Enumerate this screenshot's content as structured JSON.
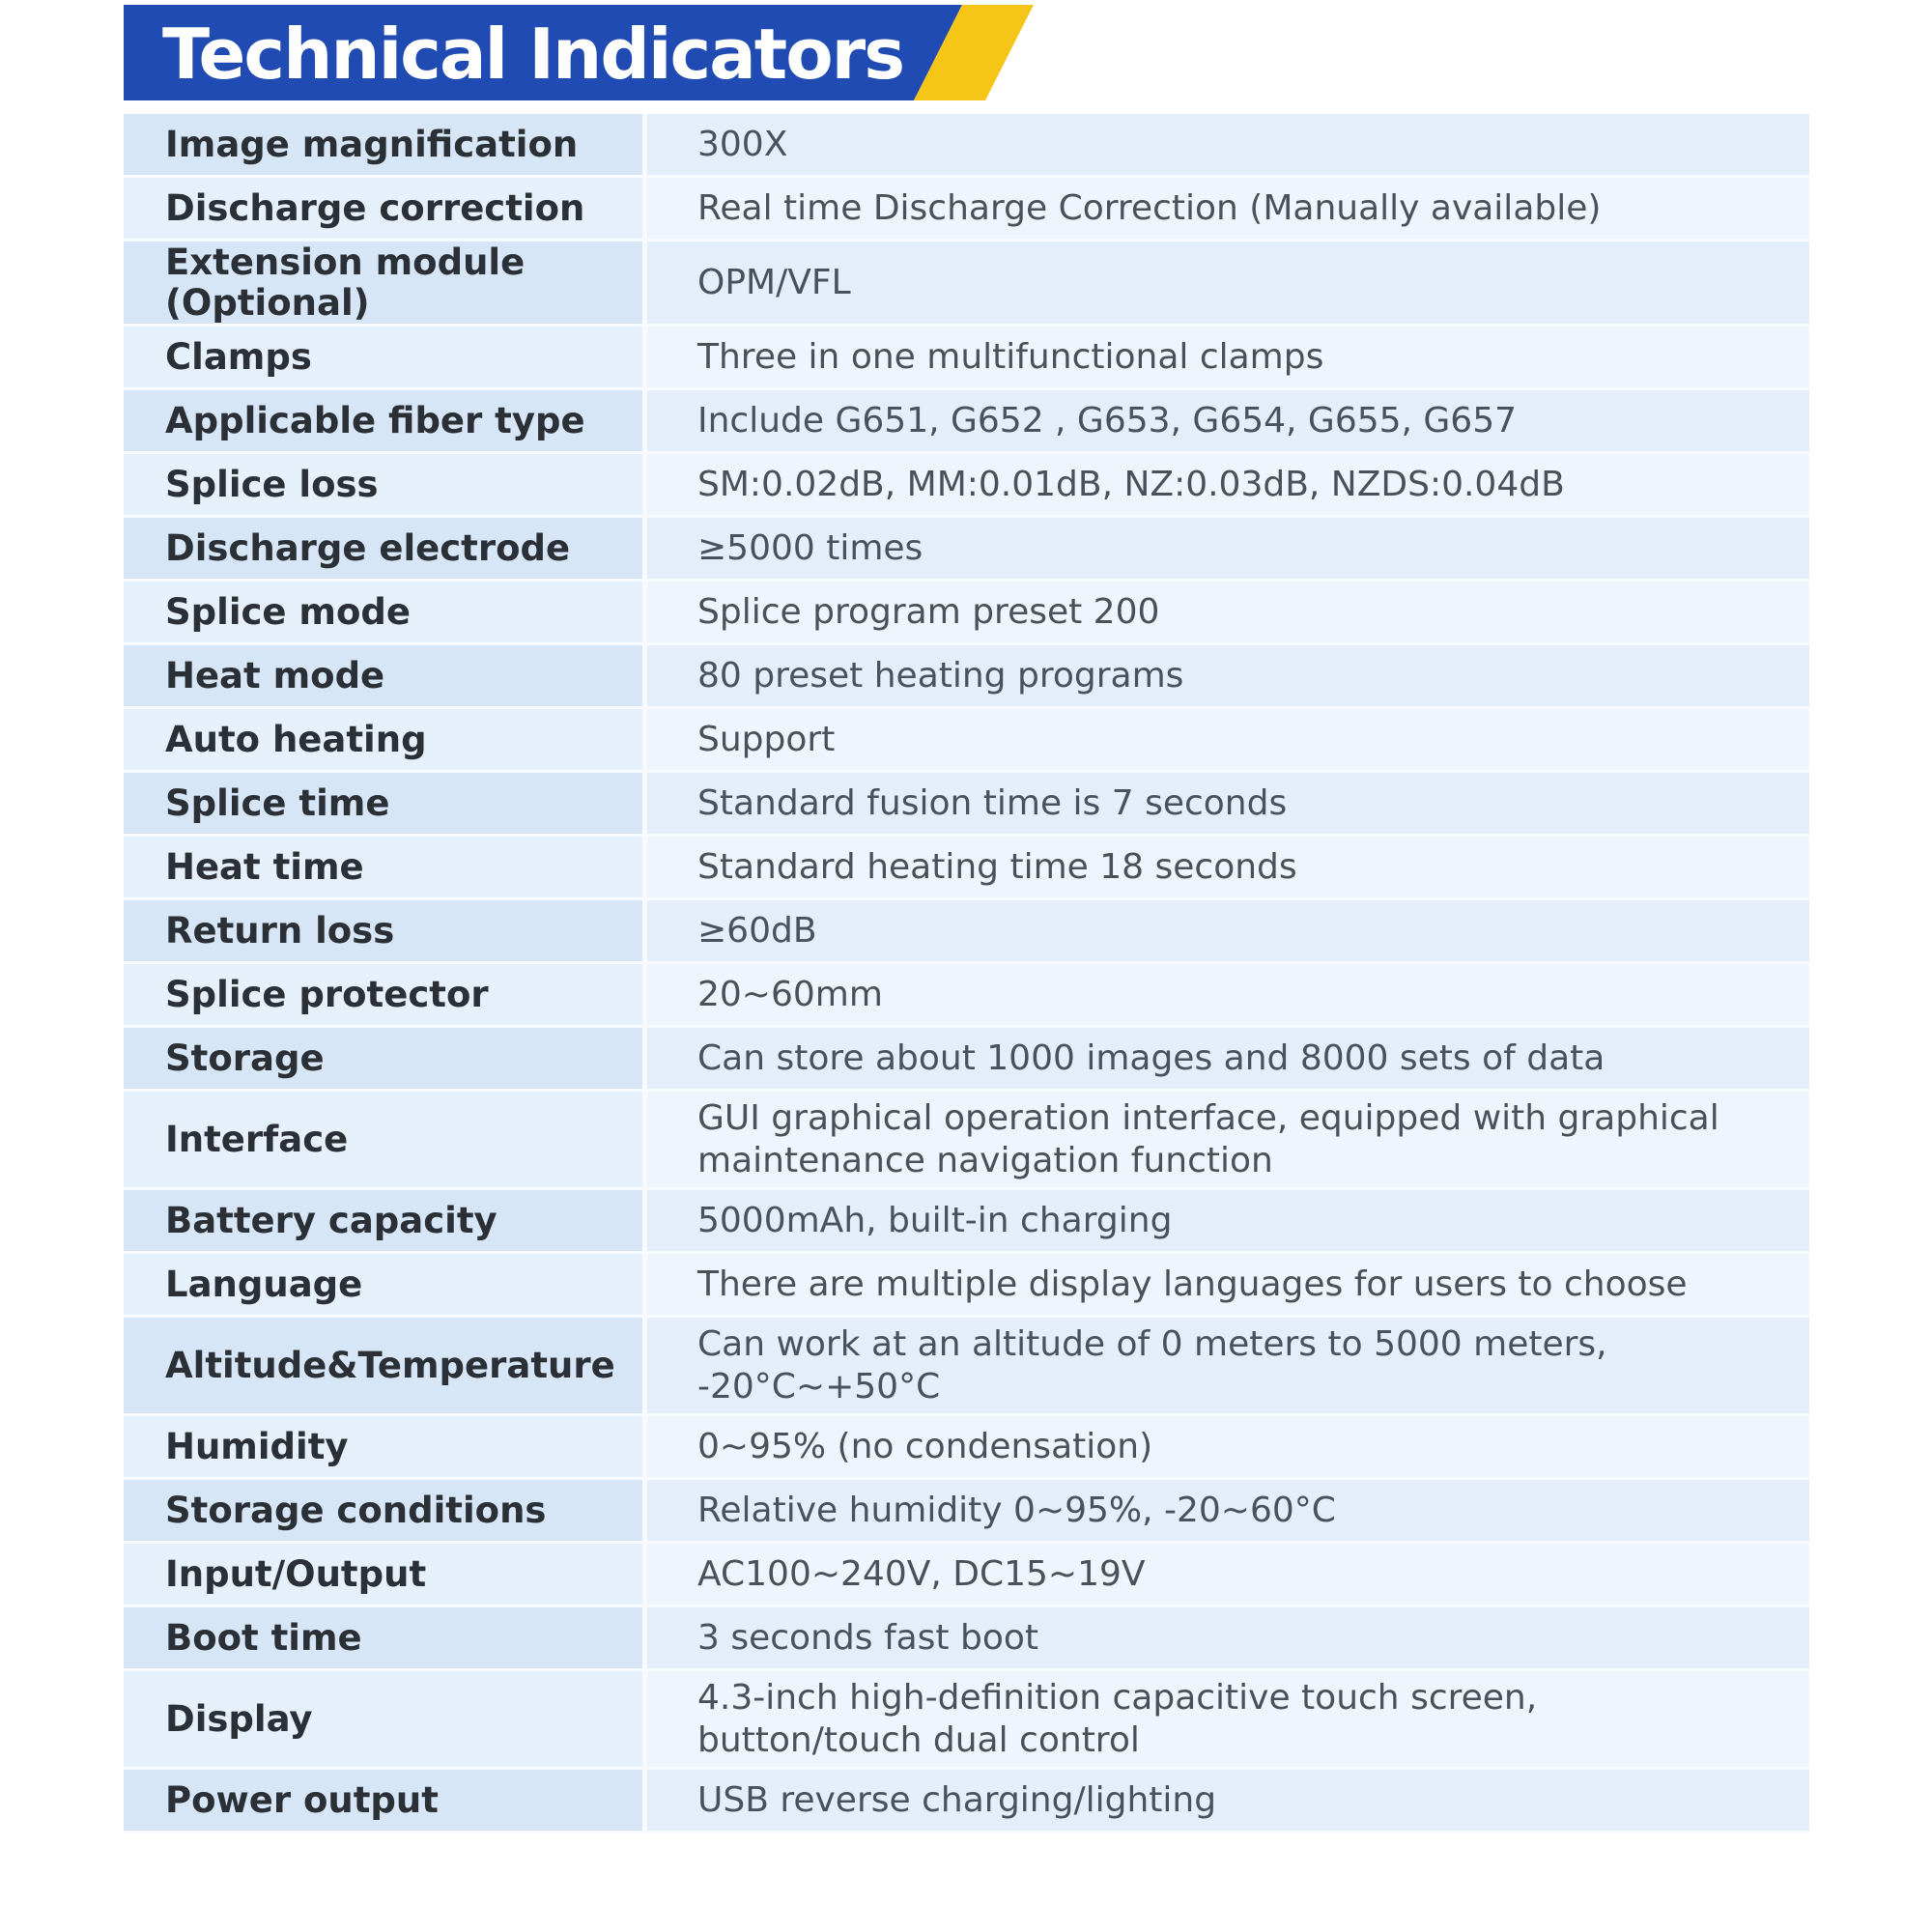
{
  "header": {
    "title": "Technical Indicators",
    "colors": {
      "banner_blue": "#1f4bb3",
      "accent_yellow": "#f5c518"
    }
  },
  "specs": [
    {
      "label": "Image magnification",
      "value": "300X"
    },
    {
      "label": "Discharge correction",
      "value": "Real time Discharge Correction (Manually available)"
    },
    {
      "label": "Extension module (Optional)",
      "value": "OPM/VFL"
    },
    {
      "label": "Clamps",
      "value": "Three in one multifunctional clamps"
    },
    {
      "label": "Applicable fiber type",
      "value": "Include G651, G652 , G653, G654, G655, G657"
    },
    {
      "label": "Splice loss",
      "value": "SM:0.02dB, MM:0.01dB, NZ:0.03dB, NZDS:0.04dB"
    },
    {
      "label": "Discharge electrode",
      "value": "≥5000 times"
    },
    {
      "label": "Splice mode",
      "value": "Splice program preset 200"
    },
    {
      "label": "Heat mode",
      "value": "80 preset heating programs"
    },
    {
      "label": "Auto heating",
      "value": "Support"
    },
    {
      "label": "Splice time",
      "value": "Standard fusion time is 7 seconds"
    },
    {
      "label": "Heat time",
      "value": "Standard heating time 18 seconds"
    },
    {
      "label": "Return loss",
      "value": "≥60dB"
    },
    {
      "label": "Splice protector",
      "value": "20~60mm"
    },
    {
      "label": "Storage",
      "value": "Can store about 1000 images and 8000 sets of data"
    },
    {
      "label": "Interface",
      "value": "GUI graphical operation interface, equipped with graphical maintenance navigation function"
    },
    {
      "label": "Battery capacity",
      "value": "5000mAh, built-in charging"
    },
    {
      "label": "Language",
      "value": "There are multiple display languages for users to choose"
    },
    {
      "label": "Altitude&Temperature",
      "value": "Can work at an altitude of 0 meters to 5000 meters, -20°C~+50°C"
    },
    {
      "label": "Humidity",
      "value": "0~95% (no condensation)"
    },
    {
      "label": "Storage conditions",
      "value": "Relative humidity 0~95%, -20~60°C"
    },
    {
      "label": "Input/Output",
      "value": "AC100~240V, DC15~19V"
    },
    {
      "label": "Boot time",
      "value": "3 seconds fast boot"
    },
    {
      "label": "Display",
      "value": "4.3-inch high-definition capacitive touch screen, button/touch dual control"
    },
    {
      "label": "Power output",
      "value": "USB reverse charging/lighting"
    }
  ]
}
